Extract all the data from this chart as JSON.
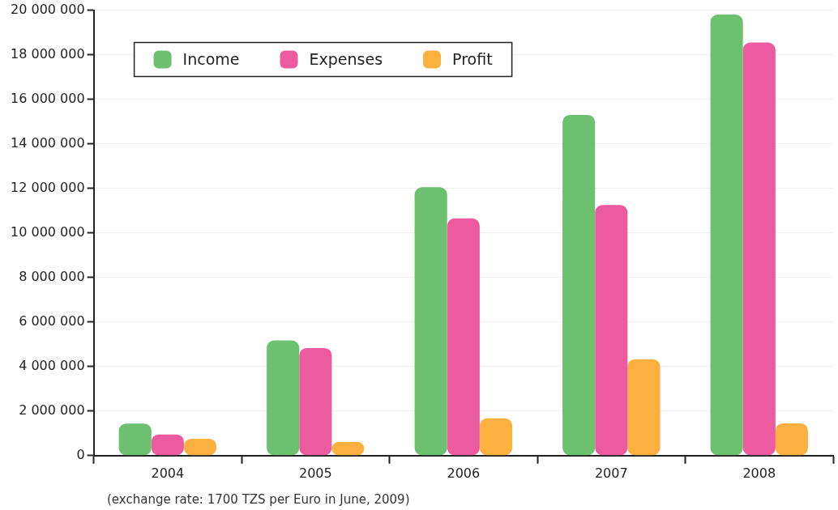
{
  "chart_data": {
    "type": "bar",
    "categories": [
      "2004",
      "2005",
      "2006",
      "2007",
      "2008"
    ],
    "series": [
      {
        "name": "Income",
        "color": "#6cc070",
        "values": [
          1440000,
          5170000,
          12050000,
          15300000,
          19800000
        ]
      },
      {
        "name": "Expenses",
        "color": "#ec5ba0",
        "values": [
          950000,
          4830000,
          10650000,
          11250000,
          18550000
        ]
      },
      {
        "name": "Profit",
        "color": "#fbb040",
        "values": [
          760000,
          610000,
          1670000,
          4330000,
          1450000
        ]
      }
    ],
    "ylim": [
      0,
      20000000
    ],
    "yticks": [
      0,
      {
        "value": 2000000,
        "label": "2 000 000"
      },
      {
        "value": 4000000,
        "label": "4 000 000"
      },
      {
        "value": 6000000,
        "label": "6 000 000"
      },
      {
        "value": 8000000,
        "label": "8 000 000"
      },
      {
        "value": 10000000,
        "label": "10 000 000"
      },
      {
        "value": 12000000,
        "label": "12 000 000"
      },
      {
        "value": 14000000,
        "label": "14 000 000"
      },
      {
        "value": 16000000,
        "label": "16 000 000"
      },
      {
        "value": 18000000,
        "label": "18 000 000"
      },
      {
        "value": 20000000,
        "label": "20 000 000"
      }
    ],
    "grid": "y",
    "legend": "top left",
    "annotations": [
      "(exchange rate: 1700 TZS per Euro in June, 2009)"
    ]
  }
}
